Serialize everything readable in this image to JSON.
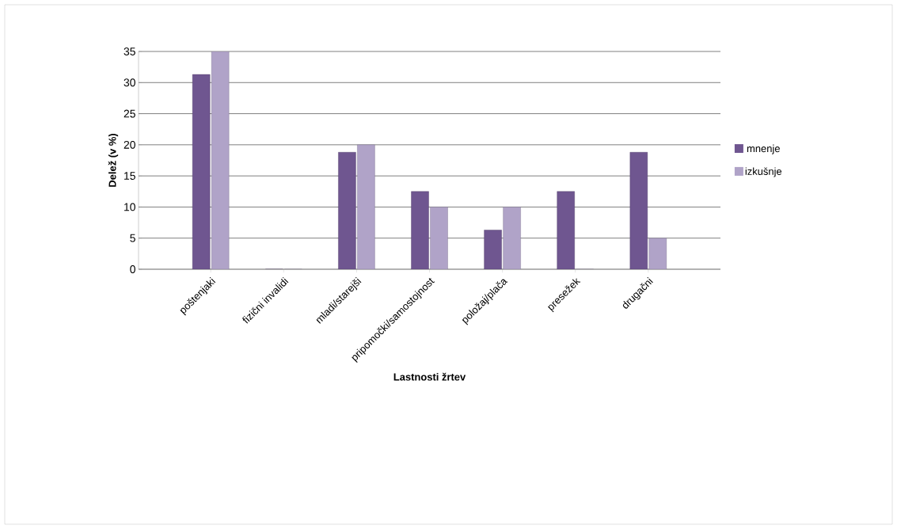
{
  "chart_data": {
    "type": "bar",
    "xlabel": "Lastnosti žrtev",
    "ylabel": "Delež (v %)",
    "categories": [
      "poštenjaki",
      "fizični invalidi",
      "mladi/starejši",
      "pripomočki/samostojnost",
      "položaj/plača",
      "presežek",
      "drugačni"
    ],
    "series": [
      {
        "name": "mnenje",
        "color": "#6f5690",
        "values": [
          31.3,
          0,
          18.8,
          12.5,
          6.3,
          12.5,
          18.8
        ]
      },
      {
        "name": "izkušnje",
        "color": "#b0a3c8",
        "values": [
          35,
          0,
          20,
          10,
          10,
          0,
          5
        ]
      }
    ],
    "ylim": [
      0,
      35
    ],
    "yticks": [
      0,
      5,
      10,
      15,
      20,
      25,
      30,
      35
    ],
    "grid": "y",
    "legend": "right"
  }
}
